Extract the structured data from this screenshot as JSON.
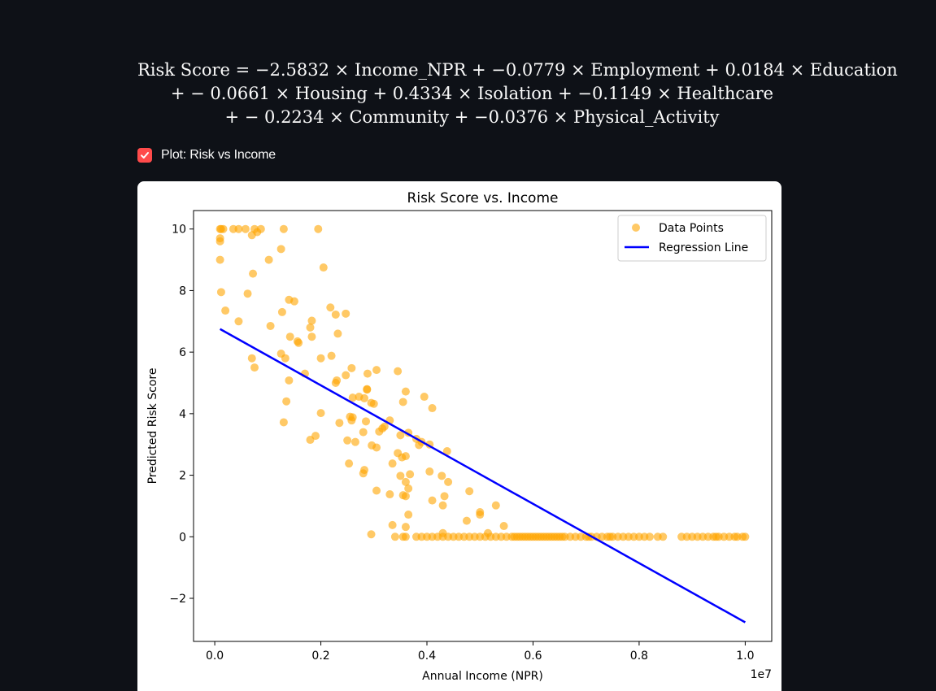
{
  "formula": {
    "line1": "Risk Score = −2.5832 × Income_NPR + −0.0779 × Employment + 0.0184 × Education",
    "line2": "+ − 0.0661 × Housing + 0.4334 × Isolation + −0.1149 × Healthcare",
    "line3": "+ − 0.2234 × Community + −0.0376 × Physical_Activity"
  },
  "checkbox": {
    "label": "Plot: Risk vs Income",
    "checked": true,
    "accent": "#ff4b4b"
  },
  "chart_data": {
    "type": "scatter",
    "title": "Risk Score vs. Income",
    "xlabel": "Annual Income (NPR)",
    "ylabel": "Predicted Risk Score",
    "x_scale_label": "1e7",
    "xlim": [
      -0.04,
      1.05
    ],
    "ylim": [
      -3.4,
      10.6
    ],
    "xticks": [
      0.0,
      0.2,
      0.4,
      0.6,
      0.8,
      1.0
    ],
    "xtick_labels": [
      "0.0",
      "0.2",
      "0.4",
      "0.6",
      "0.8",
      "1.0"
    ],
    "yticks": [
      -2,
      0,
      2,
      4,
      6,
      8,
      10
    ],
    "ytick_labels": [
      "−2",
      "0",
      "2",
      "4",
      "6",
      "8",
      "10"
    ],
    "grid": false,
    "legend": "top-right",
    "series": [
      {
        "name": "Data Points",
        "kind": "scatter",
        "color": "#ffa500",
        "points": [
          [
            0.01,
            10
          ],
          [
            0.012,
            10
          ],
          [
            0.016,
            10
          ],
          [
            0.01,
            9.7
          ],
          [
            0.01,
            9.6
          ],
          [
            0.01,
            9
          ],
          [
            0.012,
            7.95
          ],
          [
            0.02,
            7.35
          ],
          [
            0.035,
            10
          ],
          [
            0.045,
            10
          ],
          [
            0.058,
            10
          ],
          [
            0.07,
            9.8
          ],
          [
            0.075,
            10
          ],
          [
            0.08,
            9.9
          ],
          [
            0.087,
            10
          ],
          [
            0.13,
            10
          ],
          [
            0.195,
            10
          ],
          [
            0.062,
            7.9
          ],
          [
            0.072,
            8.55
          ],
          [
            0.102,
            9
          ],
          [
            0.125,
            9.35
          ],
          [
            0.205,
            8.75
          ],
          [
            0.045,
            7
          ],
          [
            0.105,
            6.85
          ],
          [
            0.127,
            7.3
          ],
          [
            0.14,
            7.7
          ],
          [
            0.15,
            7.65
          ],
          [
            0.18,
            6.8
          ],
          [
            0.183,
            7.02
          ],
          [
            0.218,
            7.45
          ],
          [
            0.228,
            7.22
          ],
          [
            0.247,
            7.25
          ],
          [
            0.232,
            6.6
          ],
          [
            0.142,
            6.5
          ],
          [
            0.156,
            6.35
          ],
          [
            0.158,
            6.3
          ],
          [
            0.183,
            6.5
          ],
          [
            0.07,
            5.8
          ],
          [
            0.075,
            5.5
          ],
          [
            0.125,
            5.95
          ],
          [
            0.133,
            5.8
          ],
          [
            0.14,
            5.08
          ],
          [
            0.135,
            4.4
          ],
          [
            0.17,
            5.3
          ],
          [
            0.2,
            5.8
          ],
          [
            0.22,
            5.88
          ],
          [
            0.228,
            5.0
          ],
          [
            0.23,
            5.08
          ],
          [
            0.247,
            5.25
          ],
          [
            0.258,
            5.48
          ],
          [
            0.26,
            4.52
          ],
          [
            0.272,
            4.55
          ],
          [
            0.282,
            4.5
          ],
          [
            0.287,
            4.8
          ],
          [
            0.288,
            5.3
          ],
          [
            0.305,
            5.42
          ],
          [
            0.287,
            4.78
          ],
          [
            0.295,
            4.35
          ],
          [
            0.3,
            4.32
          ],
          [
            0.2,
            4.02
          ],
          [
            0.235,
            3.7
          ],
          [
            0.255,
            3.9
          ],
          [
            0.258,
            3.78
          ],
          [
            0.26,
            3.88
          ],
          [
            0.28,
            3.4
          ],
          [
            0.285,
            3.75
          ],
          [
            0.31,
            3.42
          ],
          [
            0.316,
            3.52
          ],
          [
            0.32,
            3.58
          ],
          [
            0.33,
            3.78
          ],
          [
            0.345,
            5.38
          ],
          [
            0.355,
            4.38
          ],
          [
            0.36,
            4.72
          ],
          [
            0.305,
            2.9
          ],
          [
            0.296,
            2.97
          ],
          [
            0.25,
            3.13
          ],
          [
            0.18,
            3.15
          ],
          [
            0.19,
            3.28
          ],
          [
            0.253,
            2.38
          ],
          [
            0.265,
            3.08
          ],
          [
            0.28,
            2.06
          ],
          [
            0.282,
            2.17
          ],
          [
            0.345,
            2.72
          ],
          [
            0.35,
            3.3
          ],
          [
            0.353,
            2.58
          ],
          [
            0.36,
            2.62
          ],
          [
            0.365,
            3.38
          ],
          [
            0.38,
            3.18
          ],
          [
            0.385,
            2.98
          ],
          [
            0.39,
            3.08
          ],
          [
            0.395,
            4.55
          ],
          [
            0.405,
            3.0
          ],
          [
            0.41,
            4.18
          ],
          [
            0.335,
            2.38
          ],
          [
            0.35,
            1.98
          ],
          [
            0.36,
            1.78
          ],
          [
            0.365,
            1.57
          ],
          [
            0.368,
            2.03
          ],
          [
            0.36,
            1.32
          ],
          [
            0.355,
            1.35
          ],
          [
            0.33,
            1.38
          ],
          [
            0.305,
            1.5
          ],
          [
            0.13,
            3.72
          ],
          [
            0.405,
            2.12
          ],
          [
            0.41,
            1.18
          ],
          [
            0.428,
            1.98
          ],
          [
            0.433,
            1.32
          ],
          [
            0.43,
            1.02
          ],
          [
            0.44,
            1.78
          ],
          [
            0.438,
            2.78
          ],
          [
            0.48,
            1.48
          ],
          [
            0.5,
            0.8
          ],
          [
            0.5,
            0.72
          ],
          [
            0.475,
            0.52
          ],
          [
            0.53,
            1.02
          ],
          [
            0.545,
            0.35
          ],
          [
            0.365,
            0.72
          ],
          [
            0.36,
            0.32
          ],
          [
            0.335,
            0.38
          ],
          [
            0.295,
            0.08
          ],
          [
            0.34,
            0.0
          ],
          [
            0.355,
            0.0
          ],
          [
            0.36,
            0.0
          ],
          [
            0.38,
            0.0
          ],
          [
            0.39,
            0.0
          ],
          [
            0.4,
            0.0
          ],
          [
            0.41,
            0.0
          ],
          [
            0.42,
            0.0
          ],
          [
            0.43,
            0.0
          ],
          [
            0.43,
            0.12
          ],
          [
            0.44,
            0.0
          ],
          [
            0.45,
            0.0
          ],
          [
            0.46,
            0.0
          ],
          [
            0.47,
            0.0
          ],
          [
            0.48,
            0.0
          ],
          [
            0.49,
            0.0
          ],
          [
            0.5,
            0.0
          ],
          [
            0.51,
            0.0
          ],
          [
            0.515,
            0.12
          ],
          [
            0.52,
            0.0
          ],
          [
            0.53,
            0.0
          ],
          [
            0.54,
            0.0
          ],
          [
            0.55,
            0.0
          ],
          [
            0.56,
            0.0
          ],
          [
            0.565,
            0.0
          ],
          [
            0.57,
            0.0
          ],
          [
            0.575,
            0.0
          ],
          [
            0.58,
            0.0
          ],
          [
            0.585,
            0.0
          ],
          [
            0.59,
            0.0
          ],
          [
            0.595,
            0.0
          ],
          [
            0.6,
            0.0
          ],
          [
            0.605,
            0.0
          ],
          [
            0.61,
            0.0
          ],
          [
            0.615,
            0.0
          ],
          [
            0.62,
            0.0
          ],
          [
            0.625,
            0.0
          ],
          [
            0.63,
            0.0
          ],
          [
            0.635,
            0.0
          ],
          [
            0.64,
            0.0
          ],
          [
            0.645,
            0.0
          ],
          [
            0.65,
            0.0
          ],
          [
            0.655,
            0.0
          ],
          [
            0.66,
            0.0
          ],
          [
            0.67,
            0.0
          ],
          [
            0.68,
            0.0
          ],
          [
            0.69,
            0.0
          ],
          [
            0.7,
            0.0
          ],
          [
            0.705,
            0.0
          ],
          [
            0.71,
            0.0
          ],
          [
            0.72,
            0.0
          ],
          [
            0.73,
            0.0
          ],
          [
            0.74,
            0.0
          ],
          [
            0.745,
            0.0
          ],
          [
            0.75,
            0.0
          ],
          [
            0.76,
            0.0
          ],
          [
            0.77,
            0.0
          ],
          [
            0.78,
            0.0
          ],
          [
            0.79,
            0.0
          ],
          [
            0.8,
            0.0
          ],
          [
            0.81,
            0.0
          ],
          [
            0.82,
            0.0
          ],
          [
            0.835,
            0.0
          ],
          [
            0.845,
            0.0
          ],
          [
            0.88,
            0.0
          ],
          [
            0.89,
            0.0
          ],
          [
            0.9,
            0.0
          ],
          [
            0.91,
            0.0
          ],
          [
            0.92,
            0.0
          ],
          [
            0.93,
            0.0
          ],
          [
            0.94,
            0.0
          ],
          [
            0.945,
            0.0
          ],
          [
            0.95,
            0.0
          ],
          [
            0.96,
            0.0
          ],
          [
            0.97,
            0.0
          ],
          [
            0.98,
            0.0
          ],
          [
            0.985,
            0.0
          ],
          [
            0.995,
            0.0
          ],
          [
            1.0,
            0.0
          ]
        ]
      },
      {
        "name": "Regression Line",
        "kind": "line",
        "color": "#0000ff",
        "points": [
          [
            0.01,
            6.75
          ],
          [
            1.0,
            -2.78
          ]
        ]
      }
    ]
  }
}
